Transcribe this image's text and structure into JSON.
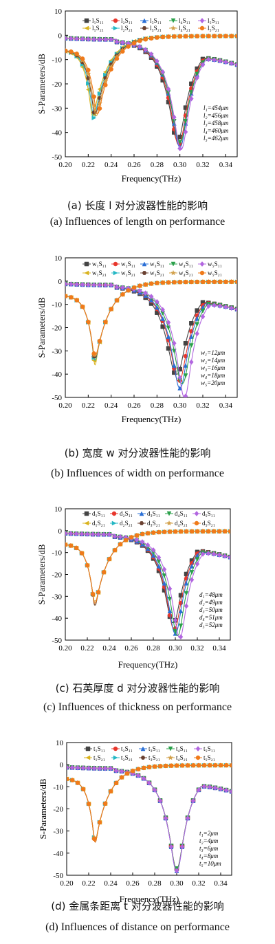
{
  "chart_data": [
    {
      "type": "line",
      "xlabel": "Frequency(THz)",
      "ylabel": "S-Parameters/dB",
      "xlim": [
        0.2,
        0.35
      ],
      "ylim": [
        -50,
        10
      ],
      "xticks": [
        "0.20",
        "0.22",
        "0.24",
        "0.26",
        "0.28",
        "0.30",
        "0.32",
        "0.34"
      ],
      "yticks": [
        "10",
        "0",
        "-10",
        "-20",
        "-30",
        "-40",
        "-50"
      ],
      "legend_row1": [
        "l₁S₁₁",
        "l₂S₁₁",
        "l₃S₁₁",
        "l₄S₁₁",
        "l₅S₁₁"
      ],
      "legend_row2": [
        "l₁S₂₁",
        "l₂S₂₁",
        "l₃S₂₁",
        "l₄S₂₁",
        "l₅S₂₁"
      ],
      "legend_placement": "top",
      "annotations": [
        "l₁=454μm",
        "l₂=456μm",
        "l₃=458μm",
        "l₄=460μm",
        "l₅=462μm"
      ],
      "series": [
        {
          "name": "l₁",
          "s11_resonance": 0.298,
          "s11_min": -43,
          "s21_resonance": 0.224,
          "s21_min": -33
        },
        {
          "name": "l₂",
          "s11_resonance": 0.299,
          "s11_min": -45,
          "s21_resonance": 0.225,
          "s21_min": -34
        },
        {
          "name": "l₃",
          "s11_resonance": 0.3,
          "s11_min": -46,
          "s21_resonance": 0.226,
          "s21_min": -32
        },
        {
          "name": "l₄",
          "s11_resonance": 0.3,
          "s11_min": -44,
          "s21_resonance": 0.227,
          "s21_min": -33
        },
        {
          "name": "l₅",
          "s11_resonance": 0.301,
          "s11_min": -47,
          "s21_resonance": 0.228,
          "s21_min": -32
        }
      ],
      "caption_cn": "(a)  长度 l 对分波器性能的影响",
      "caption_en": "(a) Influences of length on performance"
    },
    {
      "type": "line",
      "xlabel": "Frequency(THz)",
      "ylabel": "S-Parameters/dB",
      "xlim": [
        0.2,
        0.35
      ],
      "ylim": [
        -50,
        10
      ],
      "xticks": [
        "0.20",
        "0.22",
        "0.24",
        "0.26",
        "0.28",
        "0.30",
        "0.32",
        "0.34"
      ],
      "yticks": [
        "10",
        "0",
        "-10",
        "-20",
        "-30",
        "-40",
        "-50"
      ],
      "legend_row1": [
        "w₁S₁₁",
        "w₂S₁₁",
        "w₃S₁₁",
        "w₄S₁₁",
        "w₅S₁₁"
      ],
      "legend_row2": [
        "w₁S₂₁",
        "w₂S₂₁",
        "w₃S₂₁",
        "w₄S₂₁",
        "w₅S₂₁"
      ],
      "legend_placement": "top",
      "annotations": [
        "w₁=12μm",
        "w₂=14μm",
        "w₃=16μm",
        "w₄=18μm",
        "w₅=20μm"
      ],
      "series": [
        {
          "name": "w₁",
          "s11_resonance": 0.297,
          "s11_min": -40,
          "s21_resonance": 0.226,
          "s21_min": -36
        },
        {
          "name": "w₂",
          "s11_resonance": 0.299,
          "s11_min": -43,
          "s21_resonance": 0.226,
          "s21_min": -34
        },
        {
          "name": "w₃",
          "s11_resonance": 0.3,
          "s11_min": -46,
          "s21_resonance": 0.226,
          "s21_min": -33
        },
        {
          "name": "w₄",
          "s11_resonance": 0.302,
          "s11_min": -44,
          "s21_resonance": 0.226,
          "s21_min": -32
        },
        {
          "name": "w₅",
          "s11_resonance": 0.304,
          "s11_min": -50,
          "s21_resonance": 0.226,
          "s21_min": -31
        }
      ],
      "caption_cn": "(b)  宽度 w 对分波器性能的影响",
      "caption_en": "(b) Influences of width on performance"
    },
    {
      "type": "line",
      "xlabel": "Frequency(THz)",
      "ylabel": "S-Parameters/dB",
      "xlim": [
        0.2,
        0.35
      ],
      "ylim": [
        -50,
        10
      ],
      "xticks": [
        "0.20",
        "0.22",
        "0.24",
        "0.26",
        "0.28",
        "0.30",
        "0.32",
        "0.34"
      ],
      "yticks": [
        "10",
        "0",
        "-10",
        "-20",
        "-30",
        "-40",
        "-50"
      ],
      "legend_row1": [
        "d₁S₁₁",
        "d₂S₁₁",
        "d₃S₁₁",
        "d₄S₁₁",
        "d₅S₁₁"
      ],
      "legend_row2": [
        "d₁S₂₁",
        "d₂S₂₁",
        "d₃S₂₁",
        "d₄S₂₁",
        "d₅S₂₁"
      ],
      "legend_placement": "top",
      "annotations": [
        "d₁=48μm",
        "d₂=49μm",
        "d₃=50μm",
        "d₄=51μm",
        "d₅=52μm"
      ],
      "series": [
        {
          "name": "d₁",
          "s11_resonance": 0.298,
          "s11_min": -42,
          "s21_resonance": 0.227,
          "s21_min": -34
        },
        {
          "name": "d₂",
          "s11_resonance": 0.299,
          "s11_min": -45,
          "s21_resonance": 0.227,
          "s21_min": -33
        },
        {
          "name": "d₃",
          "s11_resonance": 0.3,
          "s11_min": -47,
          "s21_resonance": 0.227,
          "s21_min": -34
        },
        {
          "name": "d₄",
          "s11_resonance": 0.302,
          "s11_min": -48,
          "s21_resonance": 0.227,
          "s21_min": -32
        },
        {
          "name": "d₅",
          "s11_resonance": 0.304,
          "s11_min": -49,
          "s21_resonance": 0.227,
          "s21_min": -33
        }
      ],
      "caption_cn": "(c)  石英厚度 d 对分波器性能的影响",
      "caption_en": "(c) Influences of thickness on performance"
    },
    {
      "type": "line",
      "xlabel": "Frequency(THz)",
      "ylabel": "S-Parameters/dB",
      "xlim": [
        0.2,
        0.35
      ],
      "ylim": [
        -50,
        10
      ],
      "xticks": [
        "0.20",
        "0.22",
        "0.24",
        "0.26",
        "0.28",
        "0.30",
        "0.32",
        "0.34"
      ],
      "yticks": [
        "10",
        "0",
        "-10",
        "-20",
        "-30",
        "-40",
        "-50"
      ],
      "legend_row1": [
        "t₁S₁₁",
        "t₂S₁₁",
        "t₃S₁₁",
        "t₄S₁₁",
        "t₅S₁₁"
      ],
      "legend_row2": [
        "t₁S₂₁",
        "t₂S₂₁",
        "t₃S₂₁",
        "t₄S₂₁",
        "t₅S₂₁"
      ],
      "legend_placement": "top",
      "annotations": [
        "t₁=2μm",
        "t₂=4μm",
        "t₃=6μm",
        "t₄=8μm",
        "t₅=10μm"
      ],
      "series": [
        {
          "name": "t₁",
          "s11_resonance": 0.3,
          "s11_min": -47,
          "s21_resonance": 0.226,
          "s21_min": -35
        },
        {
          "name": "t₂",
          "s11_resonance": 0.3,
          "s11_min": -47,
          "s21_resonance": 0.226,
          "s21_min": -34
        },
        {
          "name": "t₃",
          "s11_resonance": 0.3,
          "s11_min": -48,
          "s21_resonance": 0.226,
          "s21_min": -35
        },
        {
          "name": "t₄",
          "s11_resonance": 0.3,
          "s11_min": -47,
          "s21_resonance": 0.226,
          "s21_min": -34
        },
        {
          "name": "t₅",
          "s11_resonance": 0.3,
          "s11_min": -48,
          "s21_resonance": 0.226,
          "s21_min": -35
        }
      ],
      "caption_cn": "(d)  金属条距离 t 对分波器性能的影响",
      "caption_en": "(d) Influences of distance on performance"
    }
  ],
  "s11_colors": [
    "#444444",
    "#e8362c",
    "#2a6fd6",
    "#2aa04a",
    "#b266e0"
  ],
  "s21_colors": [
    "#d9b21c",
    "#24b7c4",
    "#6a4030",
    "#d2a04a",
    "#f07a1a"
  ],
  "s11_markers": [
    "square",
    "circle",
    "triangle-up",
    "triangle-down",
    "diamond"
  ],
  "s21_markers": [
    "triangle-left",
    "triangle-right",
    "hexagon",
    "star",
    "circle"
  ]
}
